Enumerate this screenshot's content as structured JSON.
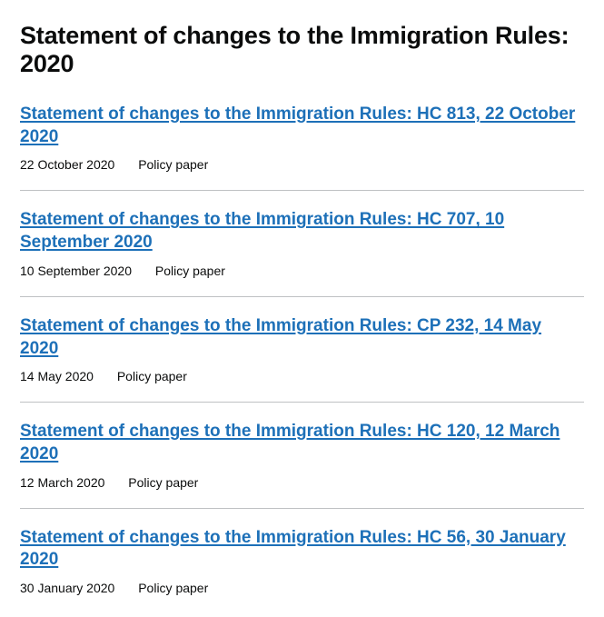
{
  "page": {
    "title": "Statement of changes to the Immigration Rules: 2020"
  },
  "documents": [
    {
      "link_text": "Statement of changes to the Immigration Rules: HC 813, 22 October 2020",
      "date": "22 October 2020",
      "type": "Policy paper"
    },
    {
      "link_text": "Statement of changes to the Immigration Rules: HC 707, 10 September 2020",
      "date": "10 September 2020",
      "type": "Policy paper"
    },
    {
      "link_text": "Statement of changes to the Immigration Rules: CP 232, 14 May 2020",
      "date": "14 May 2020",
      "type": "Policy paper"
    },
    {
      "link_text": "Statement of changes to the Immigration Rules: HC 120, 12 March 2020",
      "date": "12 March 2020",
      "type": "Policy paper"
    },
    {
      "link_text": "Statement of changes to the Immigration Rules: HC 56, 30 January 2020",
      "date": "30 January 2020",
      "type": "Policy paper"
    }
  ],
  "colors": {
    "link": "#1d70b8",
    "text": "#0b0c0c",
    "divider": "#bfc1c3",
    "background": "#ffffff"
  }
}
